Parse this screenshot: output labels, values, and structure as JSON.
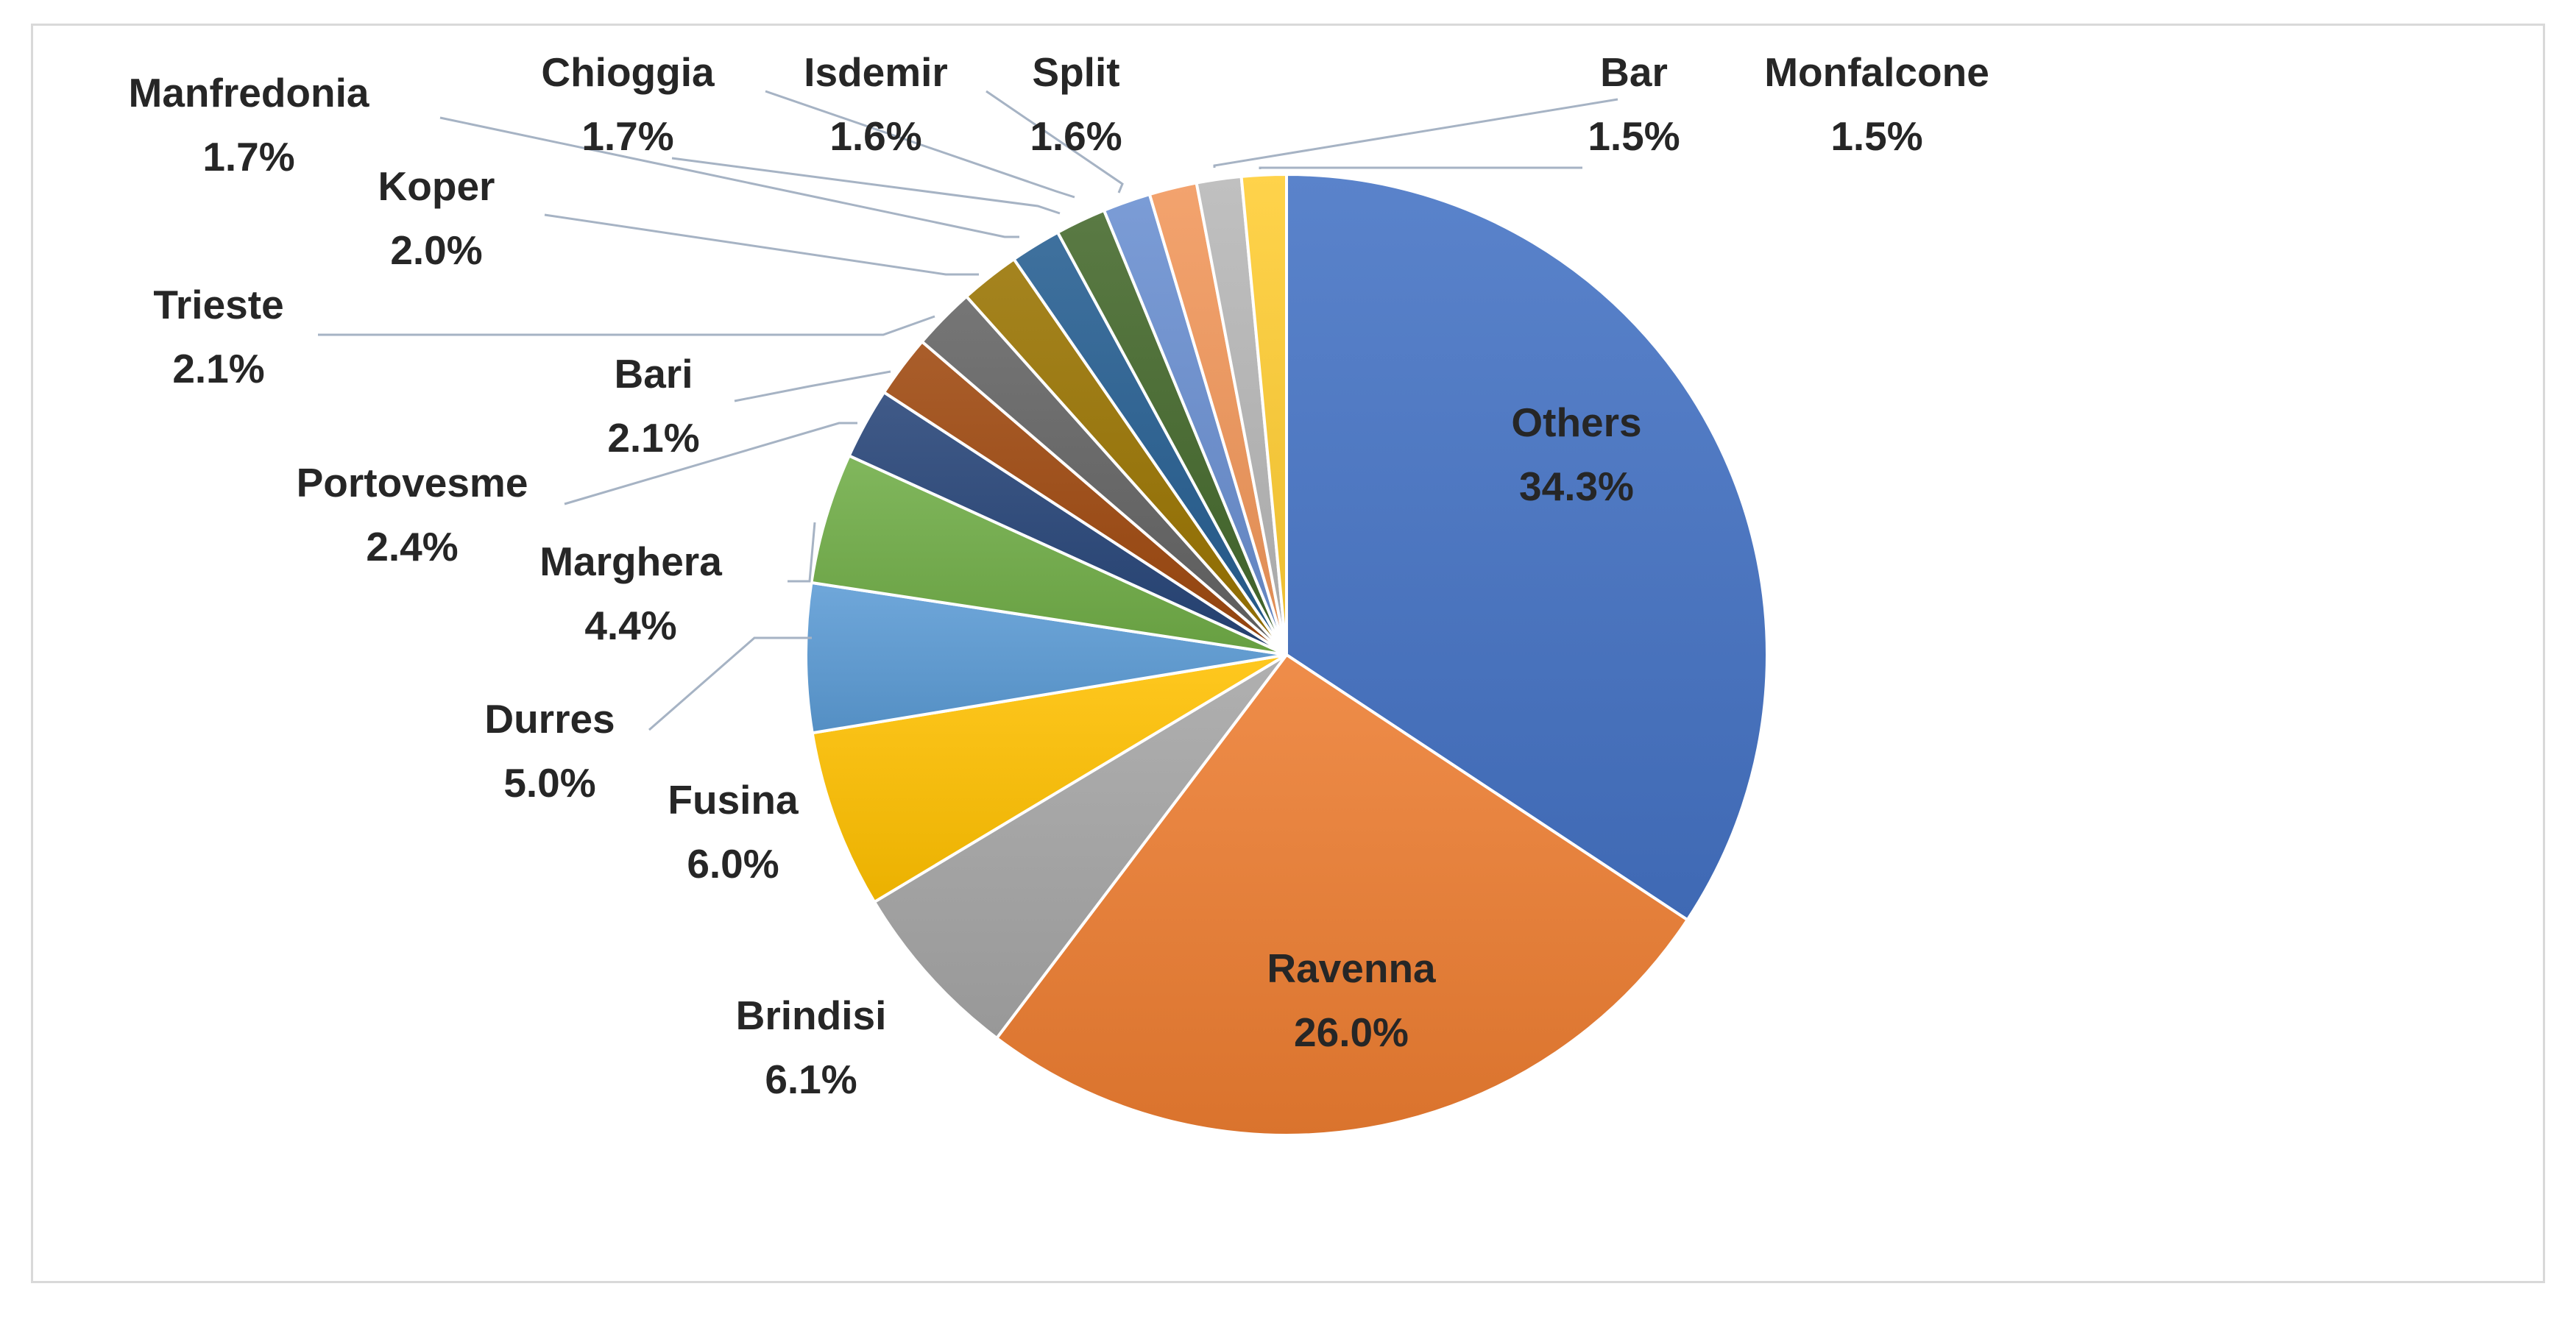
{
  "chart_data": {
    "type": "pie",
    "title": "",
    "slices": [
      {
        "label": "Others",
        "value": 34.3,
        "value_label": "34.3%",
        "color": "#4472C4"
      },
      {
        "label": "Ravenna",
        "value": 26.0,
        "value_label": "26.0%",
        "color": "#ED7D31"
      },
      {
        "label": "Brindisi",
        "value": 6.1,
        "value_label": "6.1%",
        "color": "#A5A5A5"
      },
      {
        "label": "Fusina",
        "value": 6.0,
        "value_label": "6.0%",
        "color": "#FFC000"
      },
      {
        "label": "Durres",
        "value": 5.0,
        "value_label": "5.0%",
        "color": "#5B9BD5"
      },
      {
        "label": "Marghera",
        "value": 4.4,
        "value_label": "4.4%",
        "color": "#70AD47"
      },
      {
        "label": "Portovesme",
        "value": 2.4,
        "value_label": "2.4%",
        "color": "#264478"
      },
      {
        "label": "Bari",
        "value": 2.1,
        "value_label": "2.1%",
        "color": "#9E480E"
      },
      {
        "label": "Trieste",
        "value": 2.1,
        "value_label": "2.1%",
        "color": "#636363"
      },
      {
        "label": "Koper",
        "value": 2.0,
        "value_label": "2.0%",
        "color": "#997300"
      },
      {
        "label": "Manfredonia",
        "value": 1.7,
        "value_label": "1.7%",
        "color": "#255E91"
      },
      {
        "label": "Chioggia",
        "value": 1.7,
        "value_label": "1.7%",
        "color": "#43682B"
      },
      {
        "label": "Isdemir",
        "value": 1.6,
        "value_label": "1.6%",
        "color": "#698ED0"
      },
      {
        "label": "Split",
        "value": 1.6,
        "value_label": "1.6%",
        "color": "#F1975A"
      },
      {
        "label": "Bar",
        "value": 1.5,
        "value_label": "1.5%",
        "color": "#B7B7B7"
      },
      {
        "label": "Monfalcone",
        "value": 1.5,
        "value_label": "1.5%",
        "color": "#FFCD33"
      }
    ]
  }
}
